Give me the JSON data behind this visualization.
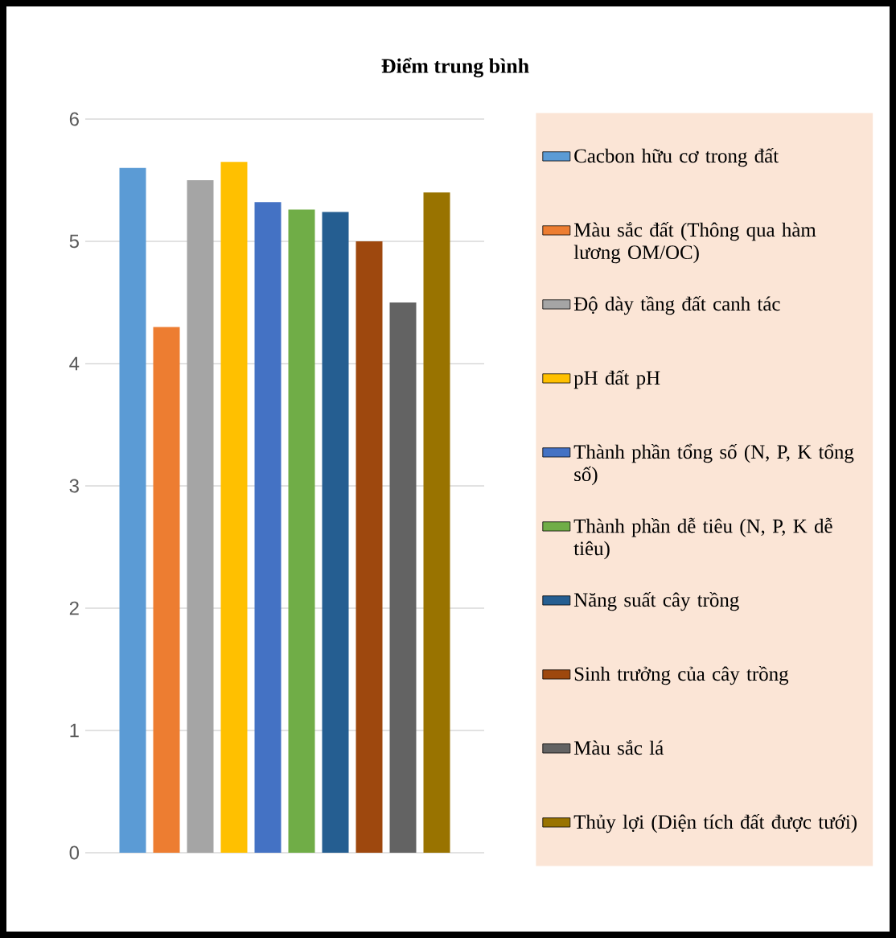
{
  "chart_data": {
    "type": "bar",
    "title": "Điểm trung bình",
    "categories": [
      null
    ],
    "series": [
      {
        "name": "Cacbon hữu cơ trong đất",
        "color": "#5b9bd5",
        "values": [
          5.6
        ]
      },
      {
        "name": "Màu sắc đất (Thông qua hàm lương OM/OC)",
        "color": "#ed7d31",
        "values": [
          4.3
        ]
      },
      {
        "name": "Độ dày tầng đất canh tác",
        "color": "#a5a5a5",
        "values": [
          5.5
        ]
      },
      {
        "name": "pH đất pH",
        "color": "#ffc000",
        "values": [
          5.65
        ]
      },
      {
        "name": "Thành phần tổng số (N, P, K tổng số)",
        "color": "#4472c4",
        "values": [
          5.32
        ]
      },
      {
        "name": "Thành phần dễ tiêu (N, P, K dễ tiêu)",
        "color": "#70ad47",
        "values": [
          5.26
        ]
      },
      {
        "name": "Năng suất cây trồng",
        "color": "#255e91",
        "values": [
          5.24
        ]
      },
      {
        "name": "Sinh trưởng của cây trồng",
        "color": "#9e480e",
        "values": [
          5.0
        ]
      },
      {
        "name": "Màu sắc lá",
        "color": "#636363",
        "values": [
          4.5
        ]
      },
      {
        "name": "Thủy lợi (Diện tích đất được tưới)",
        "color": "#997300",
        "values": [
          5.4
        ]
      }
    ],
    "ylim": [
      0,
      6
    ],
    "yticks": [
      0,
      1,
      2,
      3,
      4,
      5,
      6
    ],
    "grid": "y",
    "legend": "right"
  }
}
